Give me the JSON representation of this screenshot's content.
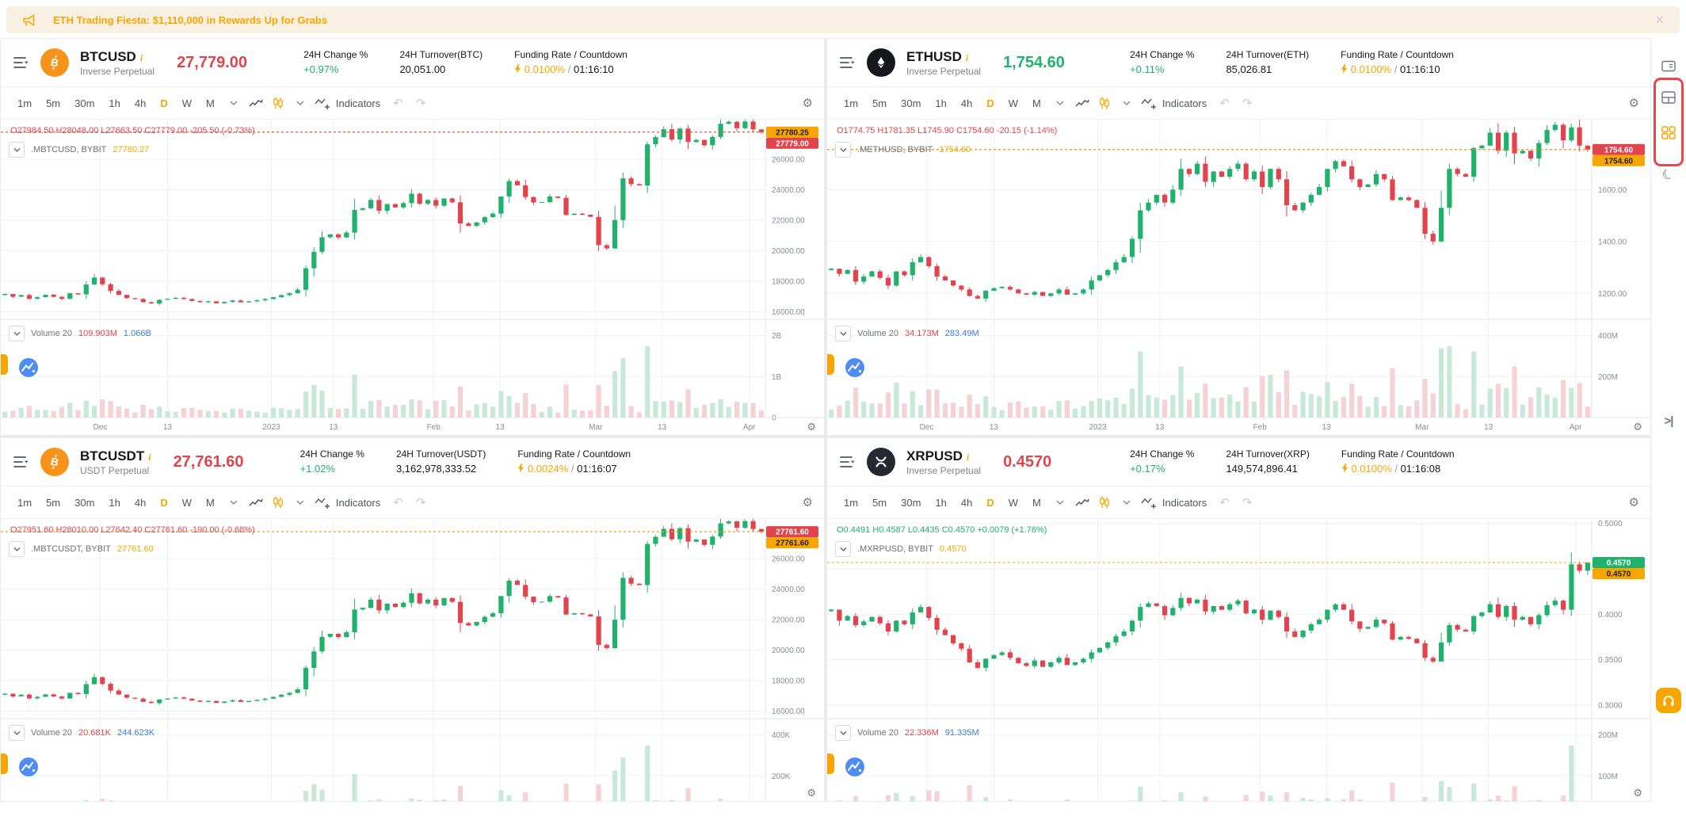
{
  "banner": {
    "text": "ETH Trading Fiesta: $1,110,000 in Rewards Up for Grabs",
    "close_label": "×"
  },
  "toolbar": {
    "timeframes": [
      "1m",
      "5m",
      "30m",
      "1h",
      "4h",
      "D",
      "W",
      "M"
    ],
    "active_timeframe": "D",
    "indicators_label": "Indicators"
  },
  "time_axis": {
    "labels": [
      "Dec",
      "13",
      "2023",
      "13",
      "Feb",
      "13",
      "Mar",
      "13",
      "Apr"
    ],
    "positions": [
      0.13,
      0.218,
      0.354,
      0.435,
      0.566,
      0.653,
      0.778,
      0.865,
      0.979
    ]
  },
  "colors": {
    "accent": "#f7a600",
    "up": "#20b26c",
    "down": "#e2444d",
    "volume_up": "#c9e9d8",
    "volume_down": "#f6d2d5",
    "blue": "#3a7ce0",
    "banner_bg": "#f8f1e3",
    "highlight_red": "#e8464a"
  },
  "sidebar": {
    "icons": [
      {
        "name": "popup-window"
      },
      {
        "name": "split-layout"
      },
      {
        "name": "grid-layout",
        "active": true
      },
      {
        "name": "night-mode"
      },
      {
        "name": "collapse-panel",
        "glyph": ">|"
      },
      {
        "name": "support-headset"
      }
    ]
  },
  "panels": [
    {
      "symbol": "BTCUSD",
      "contract": "Inverse Perpetual",
      "price": "27,779.00",
      "price_color": "down",
      "change_label": "24H Change %",
      "change": "+0.97%",
      "turnover_label": "24H Turnover(BTC)",
      "turnover": "20,051.00",
      "funding_label": "Funding Rate / Countdown",
      "funding_rate": "0.0100%",
      "countdown": "01:16:10",
      "ohlc": "O27984.50 H28048.00 L27663.50 C27779.00 -205.50 (-0.73%)",
      "ohlc_color": "down",
      "legend_symbol": ".MBTCUSD, BYBIT",
      "legend_value": "27780.27",
      "volume_label": "Volume 20",
      "volume_a": "109.903M",
      "volume_b": "1.066B",
      "logo": {
        "type": "btc",
        "bg": "#f7931a"
      },
      "chart": {
        "type": "candlestick",
        "y_min": 15500,
        "y_max": 28600,
        "ticks": [
          {
            "label": "26000.00",
            "v": 26000
          },
          {
            "label": "24000.00",
            "v": 24000
          },
          {
            "label": "22000.00",
            "v": 22000
          },
          {
            "label": "20000.00",
            "v": 20000
          },
          {
            "label": "18000.00",
            "v": 18000
          },
          {
            "label": "16000.00",
            "v": 16000
          }
        ],
        "vol_axis_max": 2.4,
        "vol_ticks": [
          {
            "label": "2B",
            "v": 2
          },
          {
            "label": "1B",
            "v": 1
          },
          {
            "label": "0",
            "v": 0
          }
        ],
        "badges": [
          {
            "text": "27780.25",
            "type": "index"
          },
          {
            "text": "27779.00",
            "type": "down"
          }
        ],
        "closes": [
          17160,
          16980,
          17090,
          16850,
          16950,
          17110,
          16970,
          16840,
          17210,
          17130,
          17780,
          18240,
          17800,
          17360,
          17100,
          16890,
          16830,
          16620,
          16540,
          16780,
          16840,
          16910,
          16830,
          16700,
          16620,
          16680,
          16550,
          16640,
          16730,
          16610,
          16680,
          16750,
          16830,
          16950,
          17090,
          17210,
          17440,
          18850,
          19930,
          20880,
          21080,
          20870,
          21190,
          22680,
          22790,
          23330,
          22630,
          23060,
          22840,
          23120,
          23740,
          23080,
          23330,
          22950,
          23430,
          23180,
          21790,
          21630,
          21860,
          22200,
          22430,
          23560,
          24570,
          24290,
          23520,
          23160,
          23190,
          23560,
          23470,
          22350,
          22430,
          22360,
          22220,
          20360,
          20150,
          22010,
          24750,
          24370,
          24280,
          26980,
          27450,
          27970,
          27290,
          28010,
          27130,
          27270,
          26920,
          27460,
          28330,
          28460,
          28040,
          28480,
          27960,
          27779
        ]
      }
    },
    {
      "symbol": "ETHUSD",
      "contract": "Inverse Perpetual",
      "price": "1,754.60",
      "price_color": "up",
      "change_label": "24H Change %",
      "change": "+0.11%",
      "turnover_label": "24H Turnover(ETH)",
      "turnover": "85,026.81",
      "funding_label": "Funding Rate / Countdown",
      "funding_rate": "0.0100%",
      "countdown": "01:16:10",
      "ohlc": "O1774.75 H1781.35 L1745.90 C1754.60 -20.15 (-1.14%)",
      "ohlc_color": "down",
      "legend_symbol": ".METHUSD, BYBIT",
      "legend_value": "1754.60",
      "volume_label": "Volume 20",
      "volume_a": "34.173M",
      "volume_b": "283.49M",
      "logo": {
        "type": "eth",
        "bg": "#16181d"
      },
      "chart": {
        "type": "candlestick",
        "y_min": 1100,
        "y_max": 1870,
        "ticks": [
          {
            "label": "1600.00",
            "v": 1600
          },
          {
            "label": "1400.00",
            "v": 1400
          },
          {
            "label": "1200.00",
            "v": 1200
          }
        ],
        "vol_axis_max": 480,
        "vol_ticks": [
          {
            "label": "400M",
            "v": 400
          },
          {
            "label": "200M",
            "v": 200
          }
        ],
        "badges": [
          {
            "text": "1754.60",
            "type": "down"
          },
          {
            "text": "1754.60",
            "type": "index"
          }
        ],
        "closes": [
          1295,
          1275,
          1290,
          1245,
          1265,
          1285,
          1260,
          1230,
          1285,
          1270,
          1320,
          1340,
          1305,
          1265,
          1250,
          1230,
          1215,
          1190,
          1180,
          1210,
          1220,
          1225,
          1215,
          1200,
          1195,
          1205,
          1190,
          1200,
          1215,
          1195,
          1200,
          1215,
          1250,
          1270,
          1290,
          1320,
          1340,
          1410,
          1520,
          1550,
          1580,
          1550,
          1600,
          1680,
          1660,
          1700,
          1630,
          1670,
          1650,
          1680,
          1700,
          1640,
          1670,
          1610,
          1680,
          1640,
          1540,
          1520,
          1550,
          1580,
          1610,
          1680,
          1710,
          1690,
          1640,
          1610,
          1620,
          1660,
          1640,
          1560,
          1570,
          1560,
          1530,
          1430,
          1400,
          1530,
          1680,
          1660,
          1650,
          1760,
          1770,
          1820,
          1750,
          1820,
          1740,
          1750,
          1720,
          1780,
          1830,
          1850,
          1790,
          1840,
          1770,
          1754.6
        ]
      }
    },
    {
      "symbol": "BTCUSDT",
      "contract": "USDT Perpetual",
      "price": "27,761.60",
      "price_color": "down",
      "change_label": "24H Change %",
      "change": "+1.02%",
      "turnover_label": "24H Turnover(USDT)",
      "turnover": "3,162,978,333.52",
      "funding_label": "Funding Rate / Countdown",
      "funding_rate": "0.0024%",
      "countdown": "01:16:07",
      "ohlc": "O27951.60 H28010.00 L27642.40 C27761.60 -190.00 (-0.68%)",
      "ohlc_color": "down",
      "legend_symbol": ".MBTCUSDT, BYBIT",
      "legend_value": "27761.60",
      "volume_label": "Volume 20",
      "volume_a": "20.681K",
      "volume_b": "244.623K",
      "logo": {
        "type": "btc",
        "bg": "#f7931a"
      },
      "chart": {
        "type": "candlestick",
        "y_min": 15500,
        "y_max": 28600,
        "ticks": [
          {
            "label": "26000.00",
            "v": 26000
          },
          {
            "label": "24000.00",
            "v": 24000
          },
          {
            "label": "22000.00",
            "v": 22000
          },
          {
            "label": "20000.00",
            "v": 20000
          },
          {
            "label": "18000.00",
            "v": 18000
          },
          {
            "label": "16000.00",
            "v": 16000
          }
        ],
        "vol_axis_max": 480,
        "vol_ticks": [
          {
            "label": "400K",
            "v": 400
          },
          {
            "label": "200K",
            "v": 200
          }
        ],
        "badges": [
          {
            "text": "27761.60",
            "type": "down"
          },
          {
            "text": "27761.60",
            "type": "index"
          }
        ],
        "closes": [
          17140,
          16960,
          17070,
          16830,
          16930,
          17090,
          16950,
          16820,
          17190,
          17110,
          17760,
          18220,
          17780,
          17340,
          17080,
          16870,
          16810,
          16600,
          16520,
          16760,
          16820,
          16890,
          16810,
          16680,
          16600,
          16660,
          16530,
          16620,
          16710,
          16590,
          16660,
          16730,
          16810,
          16930,
          17070,
          17190,
          17420,
          18830,
          19910,
          20860,
          21060,
          20850,
          21170,
          22660,
          22770,
          23310,
          22610,
          23040,
          22820,
          23100,
          23720,
          23060,
          23310,
          22930,
          23410,
          23160,
          21770,
          21610,
          21840,
          22180,
          22410,
          23540,
          24550,
          24270,
          23500,
          23140,
          23170,
          23540,
          23450,
          22330,
          22410,
          22340,
          22200,
          20340,
          20130,
          21990,
          24730,
          24350,
          24260,
          26960,
          27430,
          27950,
          27270,
          27990,
          27110,
          27250,
          26900,
          27440,
          28310,
          28440,
          28020,
          28460,
          27940,
          27761.6
        ]
      }
    },
    {
      "symbol": "XRPUSD",
      "contract": "Inverse Perpetual",
      "price": "0.4570",
      "price_color": "down",
      "change_label": "24H Change %",
      "change": "+0.17%",
      "turnover_label": "24H Turnover(XRP)",
      "turnover": "149,574,896.41",
      "funding_label": "Funding Rate / Countdown",
      "funding_rate": "0.0100%",
      "countdown": "01:16:08",
      "ohlc": "O0.4491 H0.4587 L0.4435 C0.4570 +0.0079 (+1.76%)",
      "ohlc_color": "up",
      "legend_symbol": ".MXRPUSD, BYBIT",
      "legend_value": "0.4570",
      "volume_label": "Volume 20",
      "volume_a": "22.336M",
      "volume_b": "91.335M",
      "logo": {
        "type": "xrp",
        "bg": "#23292f"
      },
      "chart": {
        "type": "candlestick",
        "y_min": 0.285,
        "y_max": 0.505,
        "ticks": [
          {
            "label": "0.5000",
            "v": 0.5
          },
          {
            "label": "0.4500",
            "v": 0.45
          },
          {
            "label": "0.4000",
            "v": 0.4
          },
          {
            "label": "0.3500",
            "v": 0.35
          },
          {
            "label": "0.3000",
            "v": 0.3
          }
        ],
        "vol_axis_max": 240,
        "vol_ticks": [
          {
            "label": "200M",
            "v": 200
          },
          {
            "label": "100M",
            "v": 100
          }
        ],
        "badges": [
          {
            "text": "0.4570",
            "type": "up"
          },
          {
            "text": "0.4570",
            "type": "index"
          }
        ],
        "closes": [
          0.405,
          0.393,
          0.398,
          0.388,
          0.392,
          0.397,
          0.39,
          0.381,
          0.393,
          0.389,
          0.402,
          0.408,
          0.396,
          0.383,
          0.377,
          0.368,
          0.362,
          0.347,
          0.341,
          0.351,
          0.355,
          0.358,
          0.352,
          0.346,
          0.343,
          0.349,
          0.342,
          0.347,
          0.352,
          0.344,
          0.347,
          0.351,
          0.358,
          0.363,
          0.369,
          0.376,
          0.381,
          0.393,
          0.408,
          0.412,
          0.409,
          0.399,
          0.407,
          0.418,
          0.412,
          0.416,
          0.403,
          0.409,
          0.405,
          0.411,
          0.415,
          0.401,
          0.405,
          0.394,
          0.404,
          0.397,
          0.381,
          0.375,
          0.382,
          0.389,
          0.394,
          0.405,
          0.411,
          0.405,
          0.392,
          0.384,
          0.386,
          0.394,
          0.39,
          0.372,
          0.375,
          0.373,
          0.368,
          0.352,
          0.348,
          0.369,
          0.388,
          0.383,
          0.381,
          0.398,
          0.402,
          0.411,
          0.397,
          0.409,
          0.394,
          0.397,
          0.389,
          0.399,
          0.41,
          0.415,
          0.405,
          0.455,
          0.448,
          0.457
        ]
      }
    }
  ]
}
